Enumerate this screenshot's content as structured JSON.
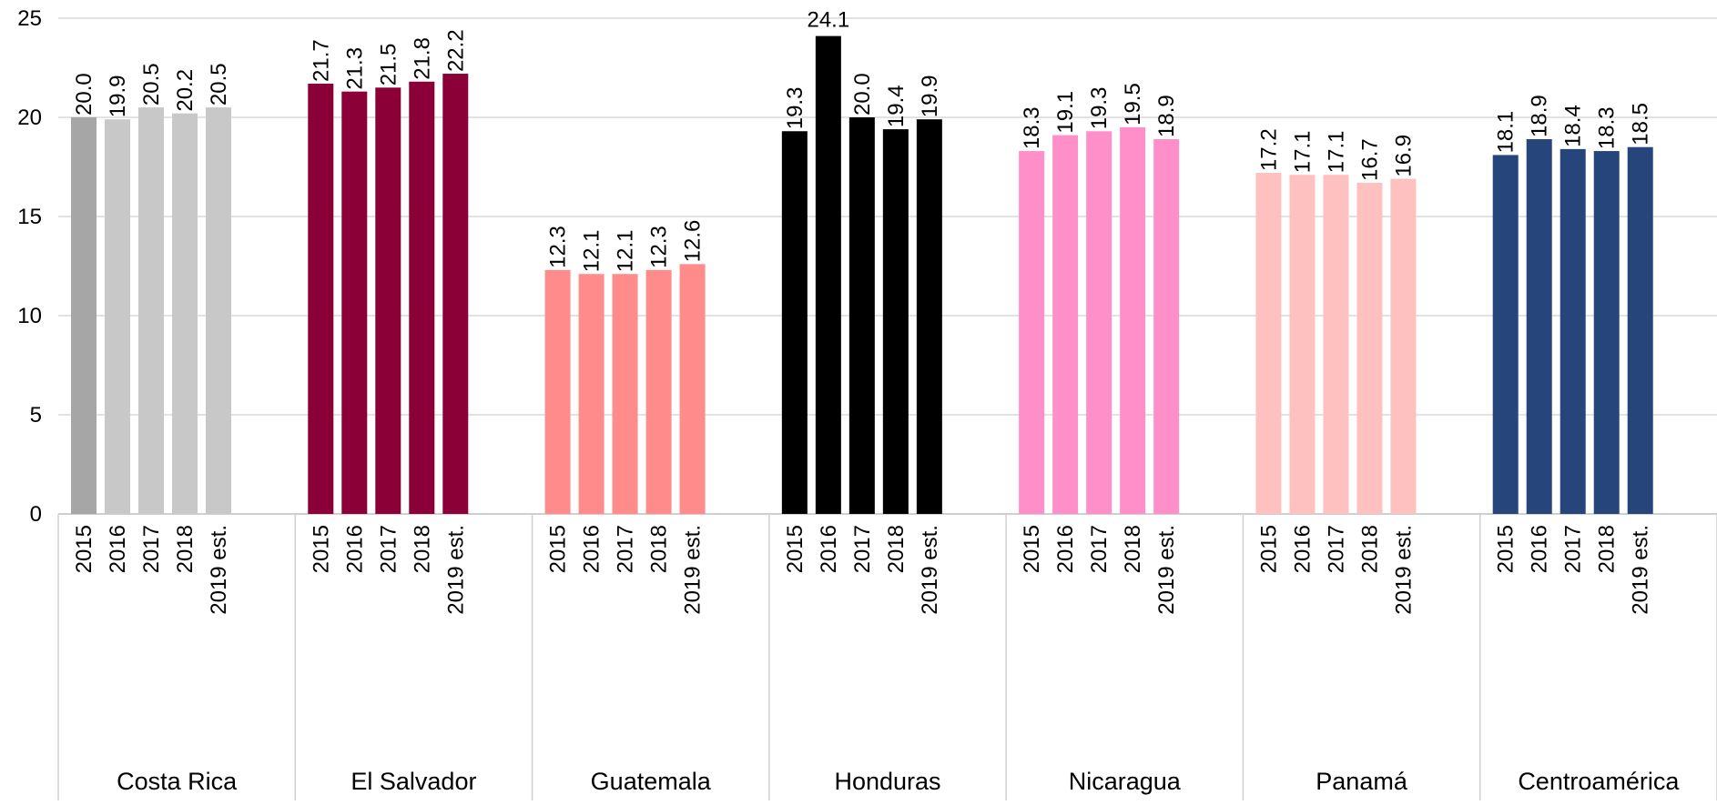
{
  "chart_data": {
    "type": "bar",
    "title": "",
    "xlabel": "",
    "ylabel": "",
    "ylim": [
      0,
      25
    ],
    "yticks": [
      0,
      5,
      10,
      15,
      20,
      25
    ],
    "grid": "horizontal",
    "legend": "none",
    "groups": [
      {
        "name": "Costa Rica",
        "color": "#c8c8c8",
        "highlight_first_color": "#a6a6a6",
        "categories": [
          "2015",
          "2016",
          "2017",
          "2018",
          "2019 est."
        ],
        "values": [
          20.0,
          19.9,
          20.5,
          20.2,
          20.5
        ],
        "labels": [
          "20.0",
          "19.9",
          "20.5",
          "20.2",
          "20.5"
        ]
      },
      {
        "name": "El Salvador",
        "color": "#8b0036",
        "categories": [
          "2015",
          "2016",
          "2017",
          "2018",
          "2019 est."
        ],
        "values": [
          21.7,
          21.3,
          21.5,
          21.8,
          22.2
        ],
        "labels": [
          "21.7",
          "21.3",
          "21.5",
          "21.8",
          "22.2"
        ]
      },
      {
        "name": "Guatemala",
        "color": "#ff8b8b",
        "categories": [
          "2015",
          "2016",
          "2017",
          "2018",
          "2019 est."
        ],
        "values": [
          12.3,
          12.1,
          12.1,
          12.3,
          12.6
        ],
        "labels": [
          "12.3",
          "12.1",
          "12.1",
          "12.3",
          "12.6"
        ]
      },
      {
        "name": "Honduras",
        "color": "#000000",
        "categories": [
          "2015",
          "2016",
          "2017",
          "2018",
          "2019 est."
        ],
        "values": [
          19.3,
          24.1,
          20.0,
          19.4,
          19.9
        ],
        "labels": [
          "19.3",
          "24.1",
          "20.0",
          "19.4",
          "19.9"
        ]
      },
      {
        "name": "Nicaragua",
        "color": "#ff8fc8",
        "categories": [
          "2015",
          "2016",
          "2017",
          "2018",
          "2019 est."
        ],
        "values": [
          18.3,
          19.1,
          19.3,
          19.5,
          18.9
        ],
        "labels": [
          "18.3",
          "19.1",
          "19.3",
          "19.5",
          "18.9"
        ]
      },
      {
        "name": "Panamá",
        "color": "#ffc0c0",
        "categories": [
          "2015",
          "2016",
          "2017",
          "2018",
          "2019 est."
        ],
        "values": [
          17.2,
          17.1,
          17.1,
          16.7,
          16.9
        ],
        "labels": [
          "17.2",
          "17.1",
          "17.1",
          "16.7",
          "16.9"
        ]
      },
      {
        "name": "Centroamérica",
        "color": "#26457a",
        "categories": [
          "2015",
          "2016",
          "2017",
          "2018",
          "2019 est."
        ],
        "values": [
          18.1,
          18.9,
          18.4,
          18.3,
          18.5
        ],
        "labels": [
          "18.1",
          "18.9",
          "18.4",
          "18.3",
          "18.5"
        ]
      }
    ]
  }
}
